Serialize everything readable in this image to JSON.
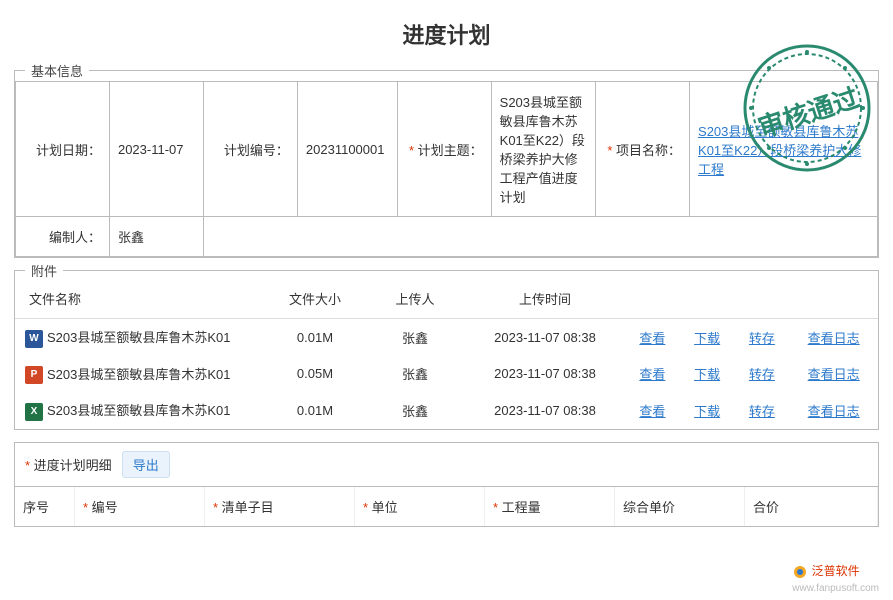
{
  "page": {
    "title": "进度计划"
  },
  "stamp": {
    "text": "审核通过",
    "color": "#2a8a6f"
  },
  "basic": {
    "legend": "基本信息",
    "fields": {
      "plan_date_label": "计划日期：",
      "plan_date": "2023-11-07",
      "plan_no_label": "计划编号：",
      "plan_no": "20231100001",
      "plan_topic_label": "计划主题：",
      "plan_topic": "S203县城至额敏县库鲁木苏K01至K22）段桥梁养护大修工程产值进度计划",
      "project_label": "项目名称：",
      "project": "S203县城至额敏县库鲁木苏K01至K22）段桥梁养护大修工程",
      "author_label": "编制人：",
      "author": "张鑫"
    }
  },
  "attach": {
    "legend": "附件",
    "headers": {
      "name": "文件名称",
      "size": "文件大小",
      "uploader": "上传人",
      "time": "上传时间"
    },
    "actions": {
      "view": "查看",
      "download": "下载",
      "save": "转存",
      "log": "查看日志"
    },
    "rows": [
      {
        "icon": "W",
        "name": "S203县城至额敏县库鲁木苏K01",
        "size": "0.01M",
        "uploader": "张鑫",
        "time": "2023-11-07 08:38"
      },
      {
        "icon": "P",
        "name": "S203县城至额敏县库鲁木苏K01",
        "size": "0.05M",
        "uploader": "张鑫",
        "time": "2023-11-07 08:38"
      },
      {
        "icon": "X",
        "name": "S203县城至额敏县库鲁木苏K01",
        "size": "0.01M",
        "uploader": "张鑫",
        "time": "2023-11-07 08:38"
      }
    ]
  },
  "detail": {
    "title": "进度计划明细",
    "export": "导出",
    "cols": {
      "seq": "序号",
      "code": "编号",
      "item": "清单子目",
      "unit": "单位",
      "qty": "工程量",
      "uprice": "综合单价",
      "total": "合价"
    }
  },
  "watermark": {
    "brand": "泛普软件",
    "url": "www.fanpusoft.com"
  }
}
